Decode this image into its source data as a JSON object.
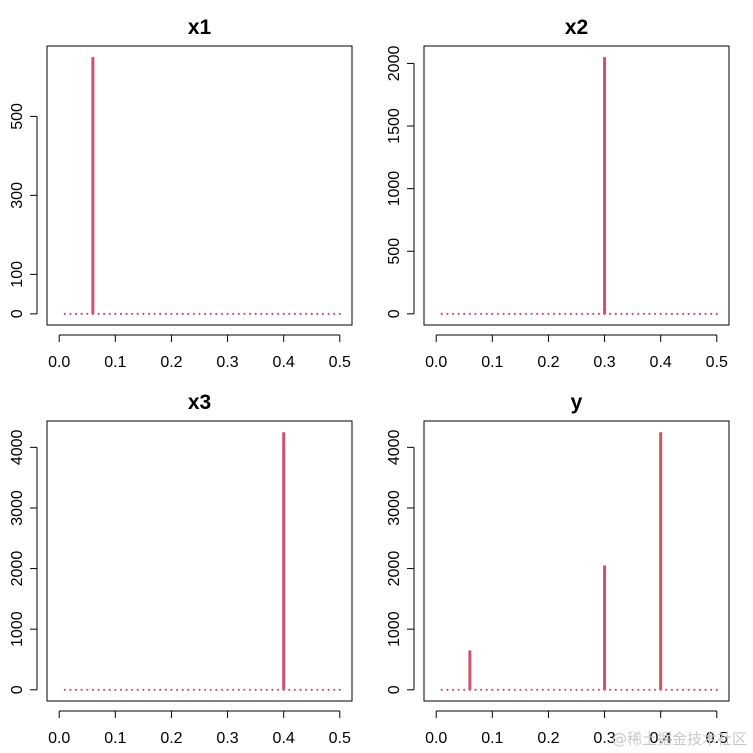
{
  "chart_data": [
    {
      "type": "bar",
      "title": "x1",
      "xlabel": "",
      "ylabel": "",
      "xlim": [
        0,
        0.5
      ],
      "ylim": [
        0,
        650
      ],
      "xticks": [
        "0.0",
        "0.1",
        "0.2",
        "0.3",
        "0.4",
        "0.5"
      ],
      "yticks": [
        "0",
        "100",
        "300",
        "500"
      ],
      "spikes": [
        {
          "x": 0.06,
          "y": 650
        }
      ],
      "baseline_points": {
        "from": 0.01,
        "to": 0.5,
        "step": 0.01,
        "y": 0
      },
      "color": "#d1506a"
    },
    {
      "type": "bar",
      "title": "x2",
      "xlabel": "",
      "ylabel": "",
      "xlim": [
        0,
        0.5
      ],
      "ylim": [
        0,
        2050
      ],
      "xticks": [
        "0.0",
        "0.1",
        "0.2",
        "0.3",
        "0.4",
        "0.5"
      ],
      "yticks": [
        "0",
        "500",
        "1000",
        "1500",
        "2000"
      ],
      "spikes": [
        {
          "x": 0.3,
          "y": 2050
        }
      ],
      "baseline_points": {
        "from": 0.01,
        "to": 0.5,
        "step": 0.01,
        "y": 0
      },
      "color": "#d1506a"
    },
    {
      "type": "bar",
      "title": "x3",
      "xlabel": "",
      "ylabel": "",
      "xlim": [
        0,
        0.5
      ],
      "ylim": [
        0,
        4250
      ],
      "xticks": [
        "0.0",
        "0.1",
        "0.2",
        "0.3",
        "0.4",
        "0.5"
      ],
      "yticks": [
        "0",
        "1000",
        "2000",
        "3000",
        "4000"
      ],
      "spikes": [
        {
          "x": 0.4,
          "y": 4250
        }
      ],
      "baseline_points": {
        "from": 0.01,
        "to": 0.5,
        "step": 0.01,
        "y": 0
      },
      "color": "#d1506a"
    },
    {
      "type": "bar",
      "title": "y",
      "xlabel": "",
      "ylabel": "",
      "xlim": [
        0,
        0.5
      ],
      "ylim": [
        0,
        4250
      ],
      "xticks": [
        "0.0",
        "0.1",
        "0.2",
        "0.3",
        "0.4",
        "0.5"
      ],
      "yticks": [
        "0",
        "1000",
        "2000",
        "3000",
        "4000"
      ],
      "spikes": [
        {
          "x": 0.06,
          "y": 650
        },
        {
          "x": 0.3,
          "y": 2050
        },
        {
          "x": 0.4,
          "y": 4250
        }
      ],
      "baseline_points": {
        "from": 0.01,
        "to": 0.5,
        "step": 0.01,
        "y": 0
      },
      "color": "#d1506a"
    }
  ],
  "watermark": "@稀土掘金技术社区"
}
